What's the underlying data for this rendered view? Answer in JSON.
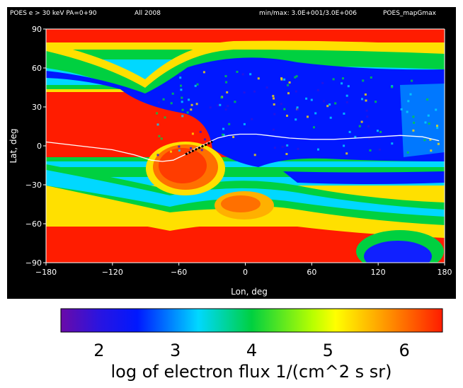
{
  "header": {
    "left": "POES e > 30 keV PA=0+90",
    "period": "All 2008",
    "minmax": "min/max: 3.0E+001/3.0E+006",
    "code": "POES_mapGmax"
  },
  "chart_data": {
    "type": "heatmap",
    "title": "POES e > 30 keV PA=0+90",
    "xlabel": "Lon, deg",
    "ylabel": "Lat, deg",
    "xlim": [
      -180,
      180
    ],
    "ylim": [
      -90,
      90
    ],
    "xticks": [
      "−180",
      "−120",
      "−60",
      "0",
      "60",
      "120",
      "180"
    ],
    "yticks": [
      "90",
      "60",
      "30",
      "0",
      "−30",
      "−60",
      "−90"
    ],
    "value_range_log10": [
      1.5,
      6.5
    ],
    "value_units": "log of electron flux 1/(cm^2 s sr)",
    "magnetic_equator": {
      "lon": [
        -180,
        -150,
        -120,
        -100,
        -85,
        -75,
        -65,
        -55,
        -45,
        -35,
        -25,
        -15,
        -5,
        0,
        10,
        20,
        30,
        40,
        60,
        80,
        100,
        120,
        140,
        160,
        175
      ],
      "lat": [
        3,
        0,
        -3,
        -7,
        -11,
        -12,
        -11,
        -7,
        -2,
        2,
        6,
        8,
        9,
        9,
        9,
        8,
        7,
        6,
        5,
        5,
        6,
        7,
        8,
        7,
        4
      ]
    },
    "saa_hot_region": {
      "lon_range": [
        -100,
        -20
      ],
      "lat_range": [
        -35,
        10
      ],
      "peak_log_flux": 6.0
    }
  },
  "colorbar": {
    "ticks": [
      "2",
      "3",
      "4",
      "5",
      "6"
    ],
    "tick_values": [
      2,
      3,
      4,
      5,
      6
    ],
    "label": "log of electron flux 1/(cm^2 s sr)",
    "stops": [
      "#6a0aa8",
      "#0010ff",
      "#00c8ff",
      "#00e050",
      "#e8ff00",
      "#ffc000",
      "#ff1c00"
    ]
  }
}
